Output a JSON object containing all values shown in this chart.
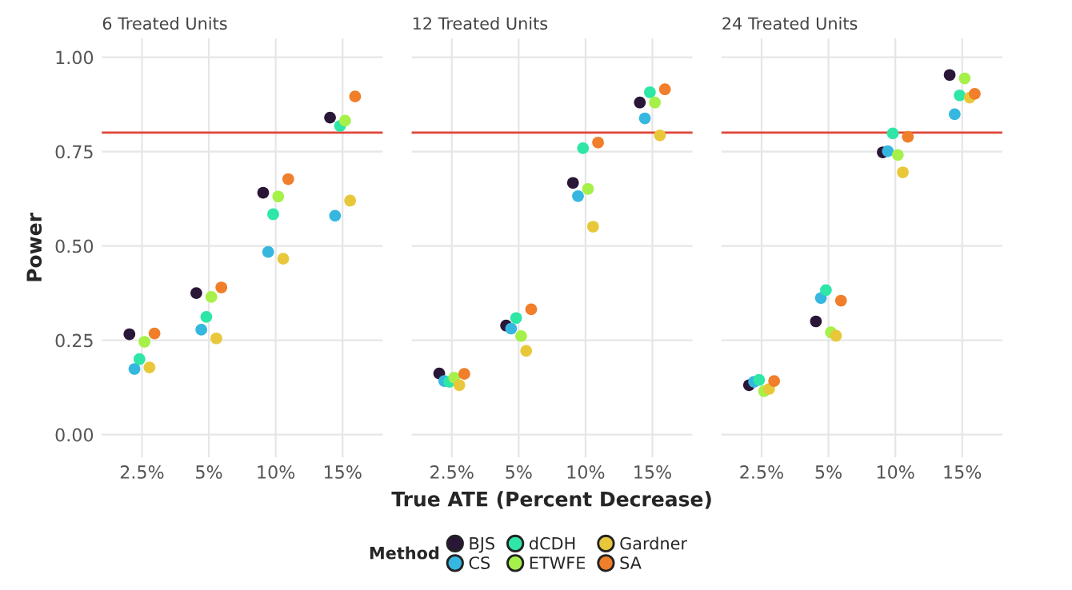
{
  "chart_data": [
    {
      "type": "scatter",
      "title": "6 Treated Units",
      "ylabel": "Power",
      "categories": [
        "2.5%",
        "5%",
        "10%",
        "15%"
      ],
      "ylim": [
        -0.06,
        1.05
      ],
      "yticks": [
        {
          "value": 0,
          "label": "0.00"
        },
        {
          "value": 0.25,
          "label": "0.25"
        },
        {
          "value": 0.5,
          "label": "0.50"
        },
        {
          "value": 0.75,
          "label": "0.75"
        },
        {
          "value": 1,
          "label": "1.00"
        }
      ],
      "grid": true,
      "marker": "circle",
      "ref_lines": [
        {
          "axis": "y",
          "value": 0.8,
          "color": "#e0453a"
        }
      ],
      "series": [
        {
          "color": "#2a1637",
          "values": [
            0.266,
            0.375,
            0.641,
            0.84
          ]
        },
        {
          "color": "#36b7e0",
          "values": [
            0.174,
            0.278,
            0.484,
            0.58
          ]
        },
        {
          "color": "#2ee6a6",
          "values": [
            0.2,
            0.312,
            0.584,
            0.818
          ]
        },
        {
          "color": "#a6f04a",
          "values": [
            0.246,
            0.365,
            0.631,
            0.832
          ]
        },
        {
          "color": "#e8c83a",
          "values": [
            0.178,
            0.255,
            0.466,
            0.62
          ]
        },
        {
          "color": "#f07e2a",
          "values": [
            0.268,
            0.39,
            0.677,
            0.896
          ]
        }
      ]
    },
    {
      "type": "scatter",
      "title": "12 Treated Units",
      "xlabel": "True ATE (Percent Decrease)",
      "categories": [
        "2.5%",
        "5%",
        "10%",
        "15%"
      ],
      "ylim": [
        -0.06,
        1.05
      ],
      "yticks": [
        0,
        0.25,
        0.5,
        0.75,
        1
      ],
      "tick_labels": "x",
      "grid": true,
      "marker": "circle",
      "legend": "bottom",
      "legend_title": "Method",
      "ref_lines": [
        {
          "axis": "y",
          "value": 0.8,
          "color": "#e0453a"
        }
      ],
      "series": [
        {
          "name": "BJS",
          "color": "#2a1637",
          "values": [
            0.162,
            0.289,
            0.667,
            0.88
          ]
        },
        {
          "name": "CS",
          "color": "#36b7e0",
          "values": [
            0.142,
            0.281,
            0.632,
            0.838
          ]
        },
        {
          "name": "dCDH",
          "color": "#2ee6a6",
          "values": [
            0.14,
            0.309,
            0.759,
            0.907
          ]
        },
        {
          "name": "ETWFE",
          "color": "#a6f04a",
          "values": [
            0.151,
            0.261,
            0.651,
            0.88
          ]
        },
        {
          "name": "Gardner",
          "color": "#e8c83a",
          "values": [
            0.131,
            0.222,
            0.551,
            0.793
          ]
        },
        {
          "name": "SA",
          "color": "#f07e2a",
          "values": [
            0.161,
            0.332,
            0.774,
            0.915
          ]
        }
      ]
    },
    {
      "type": "scatter",
      "title": "24 Treated Units",
      "categories": [
        "2.5%",
        "5%",
        "10%",
        "15%"
      ],
      "ylim": [
        -0.06,
        1.05
      ],
      "yticks": [
        0,
        0.25,
        0.5,
        0.75,
        1
      ],
      "tick_labels": "x",
      "grid": true,
      "marker": "circle",
      "ref_lines": [
        {
          "axis": "y",
          "value": 0.8,
          "color": "#e0453a"
        }
      ],
      "series": [
        {
          "color": "#2a1637",
          "values": [
            0.131,
            0.3,
            0.748,
            0.953
          ]
        },
        {
          "color": "#36b7e0",
          "values": [
            0.14,
            0.362,
            0.751,
            0.849
          ]
        },
        {
          "color": "#2ee6a6",
          "values": [
            0.145,
            0.383,
            0.798,
            0.899
          ]
        },
        {
          "color": "#a6f04a",
          "values": [
            0.115,
            0.271,
            0.741,
            0.944
          ]
        },
        {
          "color": "#e8c83a",
          "values": [
            0.121,
            0.262,
            0.695,
            0.893
          ]
        },
        {
          "color": "#f07e2a",
          "values": [
            0.142,
            0.355,
            0.789,
            0.903
          ]
        }
      ]
    }
  ]
}
